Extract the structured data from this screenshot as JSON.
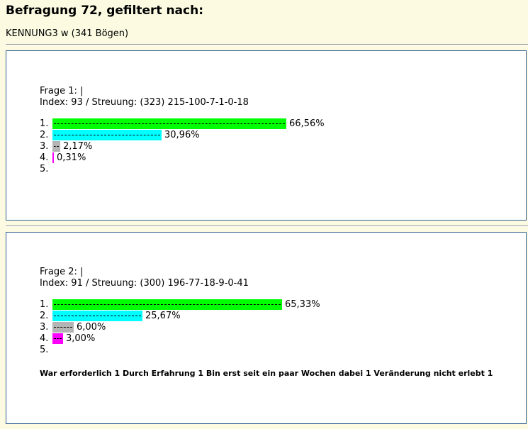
{
  "header": {
    "title": "Befragung 72, gefiltert nach:",
    "filter": "KENNUNG3 w (341 Bögen)"
  },
  "colors": {
    "page_bg": "#fcfbe2",
    "panel_border": "#2f5f8f",
    "bar_1": "#00ff00",
    "bar_2": "#00ffff",
    "bar_3": "#b4b4b4",
    "bar_4": "#ff00ff"
  },
  "questions": [
    {
      "title": "Frage 1: |",
      "index": "Index: 93 / Streuung: (323) 215-100-7-1-0-18",
      "answers": [
        {
          "num": "1.",
          "label": "66,56%",
          "value": 66.56,
          "color": "#00ff00"
        },
        {
          "num": "2.",
          "label": "30,96%",
          "value": 30.96,
          "color": "#00ffff"
        },
        {
          "num": "3.",
          "label": "2,17%",
          "value": 2.17,
          "color": "#b4b4b4"
        },
        {
          "num": "4.",
          "label": "0,31%",
          "value": 0.31,
          "color": "#ff00ff"
        },
        {
          "num": "5.",
          "label": "",
          "value": 0,
          "color": "#ffffff"
        }
      ],
      "summary": ""
    },
    {
      "title": "Frage 2: |",
      "index": "Index: 91 / Streuung: (300) 196-77-18-9-0-41",
      "answers": [
        {
          "num": "1.",
          "label": "65,33%",
          "value": 65.33,
          "color": "#00ff00"
        },
        {
          "num": "2.",
          "label": "25,67%",
          "value": 25.67,
          "color": "#00ffff"
        },
        {
          "num": "3.",
          "label": "6,00%",
          "value": 6.0,
          "color": "#b4b4b4"
        },
        {
          "num": "4.",
          "label": "3,00%",
          "value": 3.0,
          "color": "#ff00ff"
        },
        {
          "num": "5.",
          "label": "",
          "value": 0,
          "color": "#ffffff"
        }
      ],
      "summary": "War erforderlich 1 Durch Erfahrung 1 Bin erst seit ein paar Wochen dabei 1 Veränderung nicht erlebt 1"
    }
  ]
}
